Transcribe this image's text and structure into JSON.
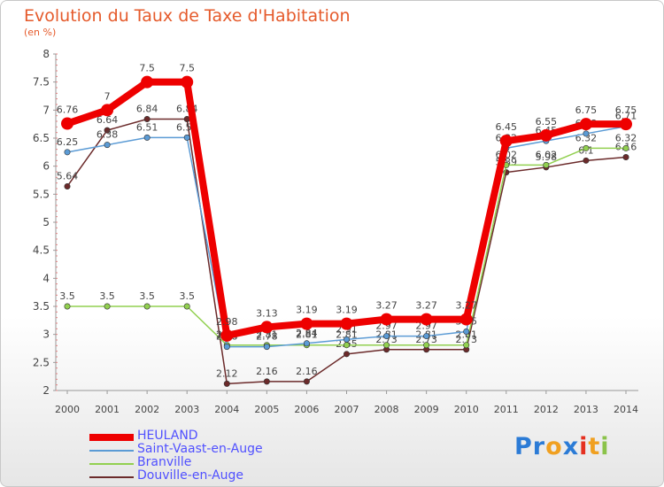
{
  "title": "Evolution du Taux de Taxe d'Habitation",
  "subtitle": "(en %)",
  "logo": {
    "text": "Proxiti",
    "colors": [
      "#2b7bd6",
      "#2b7bd6",
      "#f0a020",
      "#2b7bd6",
      "#e53020",
      "#f0a020",
      "#8bc34a"
    ]
  },
  "chart_data": {
    "type": "line",
    "title": "Evolution du Taux de Taxe d'Habitation",
    "ylabel": "(en %)",
    "xlabel": "",
    "x": [
      "2000",
      "2001",
      "2002",
      "2003",
      "2004",
      "2005",
      "2006",
      "2007",
      "2008",
      "2009",
      "2010",
      "2011",
      "2012",
      "2013",
      "2014"
    ],
    "ylim": [
      2,
      8
    ],
    "yticks": [
      "2",
      "2.5",
      "3",
      "3.5",
      "4",
      "4.5",
      "5",
      "5.5",
      "6",
      "6.5",
      "7",
      "7.5",
      "8"
    ],
    "grid": false,
    "legend_position": "bottom-left",
    "series": [
      {
        "name": "HEULAND",
        "color": "#ee0000",
        "emphasis": true,
        "values": [
          6.76,
          7,
          7.5,
          7.5,
          2.98,
          3.13,
          3.19,
          3.19,
          3.27,
          3.27,
          3.27,
          6.45,
          6.55,
          6.75,
          6.75
        ],
        "labels": [
          "6.76",
          "7",
          "7.5",
          "7.5",
          "2.98",
          "3.13",
          "3.19",
          "3.19",
          "3.27",
          "3.27",
          "3.27",
          "6.45",
          "6.55",
          "6.75",
          "6.75"
        ]
      },
      {
        "name": "Saint-Vaast-en-Auge",
        "color": "#5b9bd5",
        "values": [
          6.25,
          6.38,
          6.51,
          6.51,
          2.78,
          2.78,
          2.84,
          2.91,
          2.97,
          2.97,
          3.05,
          6.32,
          6.45,
          6.58,
          6.71
        ],
        "labels": [
          "6.25",
          "6.38",
          "6.51",
          "6.51",
          "2.78",
          "2.78",
          "2.84",
          "2.91",
          "2.97",
          "2.97",
          "3.05",
          "6.32",
          "6.45",
          "6.58",
          "6.71"
        ]
      },
      {
        "name": "Branville",
        "color": "#92d050",
        "values": [
          3.5,
          3.5,
          3.5,
          3.5,
          2.81,
          2.81,
          2.81,
          2.81,
          2.81,
          2.81,
          2.81,
          6.02,
          6.02,
          6.32,
          6.32
        ],
        "labels": [
          "3.5",
          "3.5",
          "3.5",
          "3.5",
          "2.81",
          "2.81",
          "2.81",
          "2.81",
          "2.81",
          "2.81",
          "2.81",
          "6.02",
          "6.02",
          "6.32",
          "6.32"
        ]
      },
      {
        "name": "Douville-en-Auge",
        "color": "#6b2a2a",
        "values": [
          5.64,
          6.64,
          6.84,
          6.84,
          2.12,
          2.16,
          2.16,
          2.65,
          2.73,
          2.73,
          2.73,
          5.89,
          5.98,
          6.1,
          6.16
        ],
        "labels": [
          "5.64",
          "6.64",
          "6.84",
          "6.84",
          "2.12",
          "2.16",
          "2.16",
          "2.65",
          "2.73",
          "2.73",
          "2.73",
          "5.89",
          "5.98",
          "6.1",
          "6.16"
        ]
      }
    ]
  }
}
